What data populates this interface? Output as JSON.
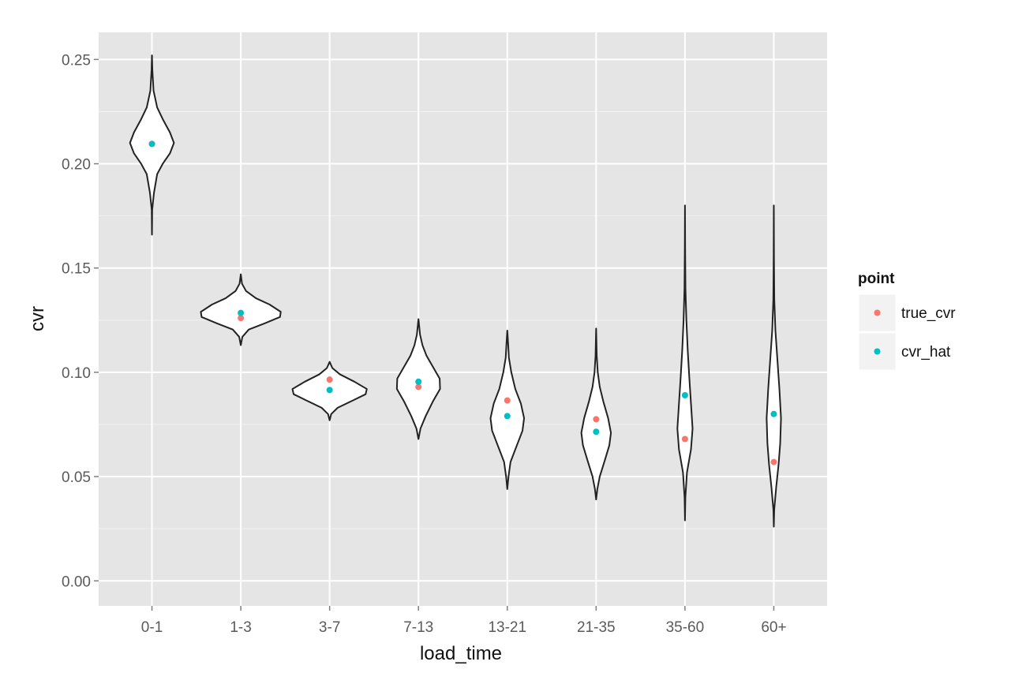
{
  "chart_data": {
    "type": "violin",
    "xlabel": "load_time",
    "ylabel": "cvr",
    "categories": [
      "0-1",
      "1-3",
      "3-7",
      "7-13",
      "13-21",
      "21-35",
      "35-60",
      "60+"
    ],
    "ylim": [
      -0.012,
      0.263
    ],
    "yticks": [
      0.0,
      0.05,
      0.1,
      0.15,
      0.2,
      0.25
    ],
    "ytick_labels": [
      "0.00",
      "0.05",
      "0.10",
      "0.15",
      "0.20",
      "0.25"
    ],
    "grid": true,
    "legend": {
      "title": "point",
      "position": "right",
      "entries": [
        {
          "name": "true_cvr",
          "color": "#F8766D"
        },
        {
          "name": "cvr_hat",
          "color": "#00BFC4"
        }
      ]
    },
    "series": [
      {
        "name": "true_cvr",
        "color": "#F8766D",
        "values": [
          0.2095,
          0.126,
          0.0965,
          0.093,
          0.0865,
          0.0775,
          0.068,
          0.057
        ]
      },
      {
        "name": "cvr_hat",
        "color": "#00BFC4",
        "values": [
          0.2095,
          0.1285,
          0.0915,
          0.0955,
          0.079,
          0.0715,
          0.089,
          0.08
        ]
      }
    ],
    "violins": [
      {
        "category": "0-1",
        "profile": [
          [
            0.166,
            0
          ],
          [
            0.178,
            0.006
          ],
          [
            0.186,
            0.05
          ],
          [
            0.195,
            0.13
          ],
          [
            0.2,
            0.27
          ],
          [
            0.205,
            0.45
          ],
          [
            0.21,
            0.55
          ],
          [
            0.215,
            0.45
          ],
          [
            0.221,
            0.28
          ],
          [
            0.227,
            0.13
          ],
          [
            0.235,
            0.04
          ],
          [
            0.245,
            0.01
          ],
          [
            0.252,
            0
          ]
        ]
      },
      {
        "category": "1-3",
        "profile": [
          [
            0.113,
            0
          ],
          [
            0.117,
            0.04
          ],
          [
            0.1205,
            0.2
          ],
          [
            0.1235,
            0.6
          ],
          [
            0.1265,
            0.98
          ],
          [
            0.129,
            1.0
          ],
          [
            0.1325,
            0.72
          ],
          [
            0.1355,
            0.38
          ],
          [
            0.139,
            0.13
          ],
          [
            0.1425,
            0.03
          ],
          [
            0.147,
            0
          ]
        ]
      },
      {
        "category": "3-7",
        "profile": [
          [
            0.077,
            0
          ],
          [
            0.08,
            0.04
          ],
          [
            0.083,
            0.2
          ],
          [
            0.0865,
            0.58
          ],
          [
            0.0895,
            0.9
          ],
          [
            0.092,
            0.93
          ],
          [
            0.0955,
            0.62
          ],
          [
            0.099,
            0.26
          ],
          [
            0.102,
            0.07
          ],
          [
            0.105,
            0
          ]
        ]
      },
      {
        "category": "7-13",
        "profile": [
          [
            0.068,
            0
          ],
          [
            0.073,
            0.05
          ],
          [
            0.079,
            0.18
          ],
          [
            0.086,
            0.36
          ],
          [
            0.092,
            0.54
          ],
          [
            0.097,
            0.53
          ],
          [
            0.103,
            0.35
          ],
          [
            0.108,
            0.2
          ],
          [
            0.113,
            0.1
          ],
          [
            0.118,
            0.04
          ],
          [
            0.1255,
            0
          ]
        ]
      },
      {
        "category": "13-21",
        "profile": [
          [
            0.044,
            0
          ],
          [
            0.05,
            0.03
          ],
          [
            0.057,
            0.08
          ],
          [
            0.065,
            0.24
          ],
          [
            0.072,
            0.38
          ],
          [
            0.078,
            0.42
          ],
          [
            0.085,
            0.34
          ],
          [
            0.092,
            0.2
          ],
          [
            0.1,
            0.1
          ],
          [
            0.107,
            0.04
          ],
          [
            0.114,
            0.02
          ],
          [
            0.12,
            0
          ]
        ]
      },
      {
        "category": "21-35",
        "profile": [
          [
            0.039,
            0
          ],
          [
            0.044,
            0.03
          ],
          [
            0.05,
            0.09
          ],
          [
            0.058,
            0.22
          ],
          [
            0.065,
            0.33
          ],
          [
            0.071,
            0.37
          ],
          [
            0.078,
            0.3
          ],
          [
            0.086,
            0.18
          ],
          [
            0.093,
            0.09
          ],
          [
            0.1,
            0.04
          ],
          [
            0.108,
            0.015
          ],
          [
            0.121,
            0
          ]
        ]
      },
      {
        "category": "35-60",
        "profile": [
          [
            0.029,
            0
          ],
          [
            0.04,
            0.01
          ],
          [
            0.052,
            0.05
          ],
          [
            0.063,
            0.15
          ],
          [
            0.073,
            0.19
          ],
          [
            0.085,
            0.15
          ],
          [
            0.097,
            0.11
          ],
          [
            0.11,
            0.07
          ],
          [
            0.125,
            0.035
          ],
          [
            0.14,
            0.012
          ],
          [
            0.16,
            0.004
          ],
          [
            0.18,
            0
          ]
        ]
      },
      {
        "category": "60+",
        "profile": [
          [
            0.026,
            0
          ],
          [
            0.034,
            0.01
          ],
          [
            0.045,
            0.06
          ],
          [
            0.056,
            0.12
          ],
          [
            0.066,
            0.16
          ],
          [
            0.078,
            0.18
          ],
          [
            0.092,
            0.14
          ],
          [
            0.106,
            0.09
          ],
          [
            0.12,
            0.04
          ],
          [
            0.135,
            0.012
          ],
          [
            0.155,
            0.004
          ],
          [
            0.18,
            0
          ]
        ]
      }
    ]
  }
}
